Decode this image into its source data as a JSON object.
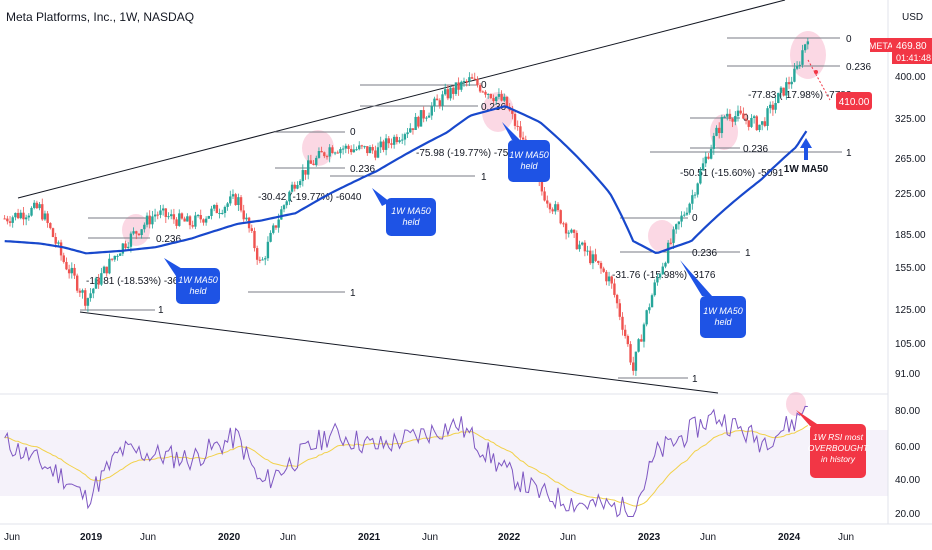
{
  "header": {
    "title": "Meta Platforms, Inc., 1W, NASDAQ"
  },
  "price_axis": {
    "currency": "USD",
    "ticks": [
      "400.00",
      "325.00",
      "265.00",
      "225.00",
      "185.00",
      "155.00",
      "125.00",
      "105.00",
      "91.00"
    ],
    "last_price_symbol": "META",
    "last_price": "469.80",
    "countdown": "01:41:48",
    "target_label": "410.00"
  },
  "rsi_axis": {
    "ticks": [
      "80.00",
      "60.00",
      "40.00",
      "20.00"
    ]
  },
  "time_axis": {
    "ticks": [
      "Jun",
      "2019",
      "Jun",
      "2020",
      "Jun",
      "2021",
      "Jun",
      "2022",
      "Jun",
      "2023",
      "Jun",
      "2024",
      "Jun"
    ]
  },
  "annotations": {
    "ma50_callouts": [
      "1W MA50\nheld",
      "1W MA50\nheld",
      "1W MA50\nheld",
      "1W MA50\nheld"
    ],
    "ma50_arrow_label": "1W MA50",
    "rsi_callout": "1W RSI most\nOVERBOUGHT\nin history",
    "corrections": [
      "-18.81 (-18.53%) -3681",
      "-30.42 (-19.77%) -6040",
      "-75.98 (-19.77%) -7598",
      "-31.76 (-15.98%) -3176",
      "-50.51 (-15.60%) -5091",
      "-77.83 (-17.98%) -7783"
    ],
    "fib_levels": [
      "0",
      "0.236",
      "1"
    ]
  },
  "chart_data": {
    "type": "line",
    "title": "",
    "x": [
      "2018-05",
      "2018-08",
      "2018-10",
      "2018-12",
      "2019-03",
      "2019-06",
      "2019-09",
      "2020-01",
      "2020-03",
      "2020-06",
      "2020-09",
      "2021-01",
      "2021-04",
      "2021-07",
      "2021-09",
      "2021-12",
      "2022-03",
      "2022-06",
      "2022-09",
      "2022-11",
      "2023-01",
      "2023-04",
      "2023-07",
      "2023-10",
      "2024-01",
      "2024-02"
    ],
    "series": [
      {
        "name": "META",
        "values": [
          190,
          200,
          155,
          127,
          165,
          195,
          185,
          210,
          150,
          230,
          270,
          265,
          300,
          350,
          375,
          335,
          220,
          170,
          140,
          90,
          140,
          210,
          320,
          300,
          390,
          470
        ]
      },
      {
        "name": "1W MA50",
        "values": [
          170,
          168,
          165,
          160,
          162,
          165,
          172,
          185,
          188,
          195,
          215,
          240,
          265,
          290,
          315,
          330,
          305,
          260,
          215,
          170,
          160,
          170,
          200,
          230,
          270,
          295
        ]
      }
    ],
    "rsi": {
      "name": "RSI",
      "x": [
        "2018-05",
        "2018-10",
        "2018-12",
        "2019-03",
        "2019-09",
        "2020-01",
        "2020-03",
        "2020-09",
        "2021-01",
        "2021-08",
        "2021-12",
        "2022-03",
        "2022-06",
        "2022-11",
        "2023-01",
        "2023-06",
        "2023-10",
        "2024-01",
        "2024-02"
      ],
      "values": [
        65,
        45,
        32,
        60,
        55,
        68,
        40,
        70,
        62,
        75,
        48,
        35,
        30,
        26,
        58,
        80,
        65,
        77,
        88
      ],
      "ylim": [
        20,
        90
      ]
    },
    "ylim": [
      85,
      480
    ],
    "log_scale": true,
    "grid": false
  }
}
